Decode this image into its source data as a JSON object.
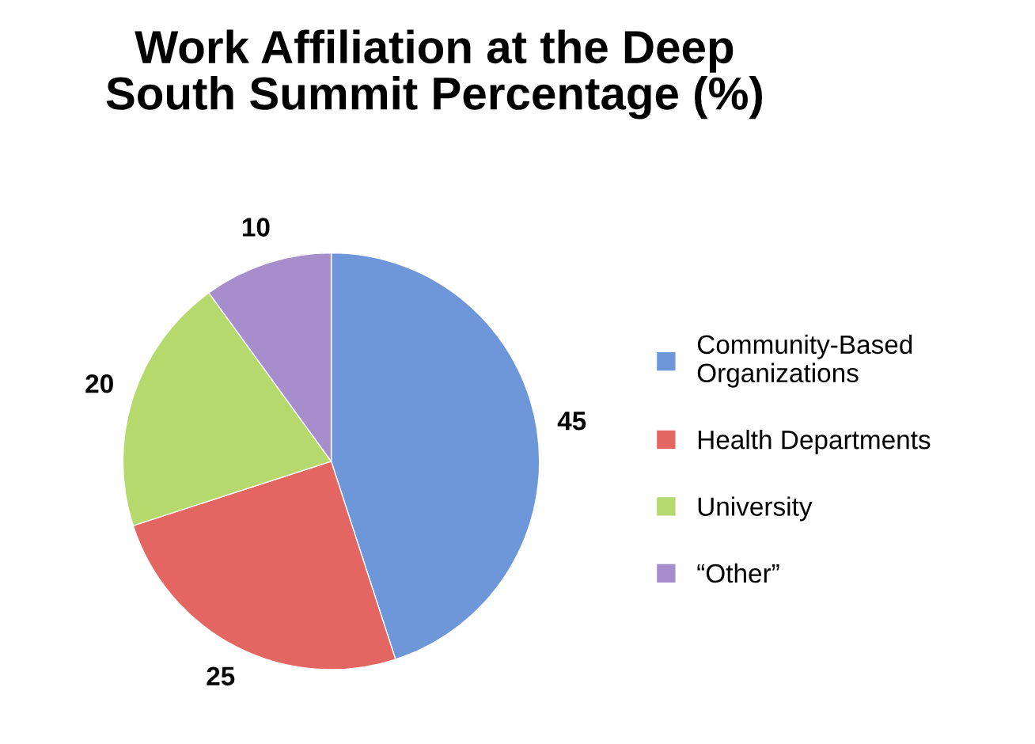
{
  "chart_data": {
    "type": "pie",
    "title": "Work Affiliation at the Deep\nSouth Summit Percentage (%)",
    "categories": [
      "Community-Based\nOrganizations",
      "Health Departments",
      "University",
      "“Other”"
    ],
    "values": [
      45,
      25,
      20,
      10
    ],
    "colors": [
      "#6e97da",
      "#e46663",
      "#b6d96e",
      "#a68dcc"
    ],
    "data_labels": true,
    "legend": "right"
  }
}
